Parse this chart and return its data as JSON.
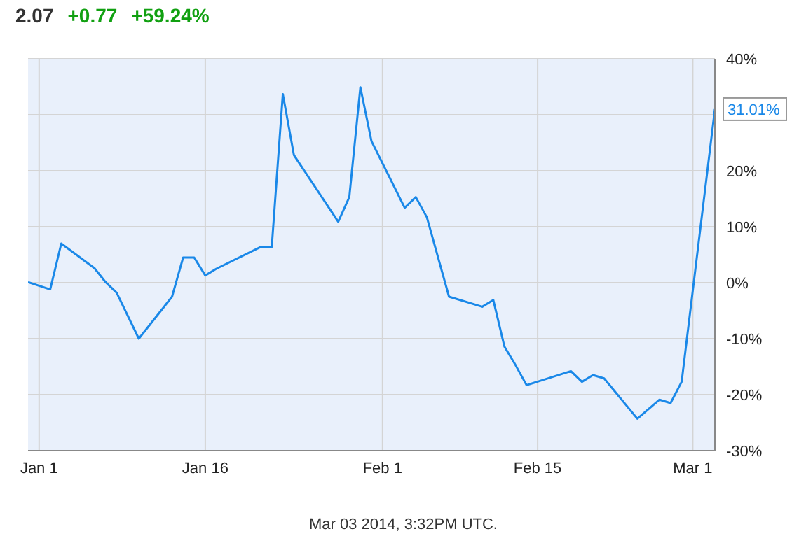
{
  "chart_data": {
    "type": "line",
    "title": "2.07 +0.77 +59.24%",
    "x": [
      "2013-12-31",
      "2014-01-02",
      "2014-01-03",
      "2014-01-06",
      "2014-01-07",
      "2014-01-08",
      "2014-01-10",
      "2014-01-13",
      "2014-01-14",
      "2014-01-15",
      "2014-01-16",
      "2014-01-17",
      "2014-01-21",
      "2014-01-22",
      "2014-01-23",
      "2014-01-24",
      "2014-01-28",
      "2014-01-29",
      "2014-01-30",
      "2014-01-31",
      "2014-02-03",
      "2014-02-04",
      "2014-02-05",
      "2014-02-07",
      "2014-02-10",
      "2014-02-11",
      "2014-02-12",
      "2014-02-13",
      "2014-02-14",
      "2014-02-18",
      "2014-02-19",
      "2014-02-20",
      "2014-02-21",
      "2014-02-24",
      "2014-02-26",
      "2014-02-27",
      "2014-02-28",
      "2014-03-03"
    ],
    "series": [
      {
        "color": "#1a88e8",
        "values": [
          0.1,
          -1.2,
          7.0,
          2.6,
          0.1,
          -1.8,
          -10.0,
          -2.5,
          4.5,
          4.5,
          1.3,
          2.5,
          6.4,
          6.4,
          33.7,
          22.8,
          10.9,
          15.3,
          34.9,
          25.3,
          13.4,
          15.3,
          11.7,
          -2.5,
          -4.3,
          -3.1,
          -11.4,
          -14.7,
          -18.3,
          -15.8,
          -17.7,
          -16.5,
          -17.1,
          -24.3,
          -20.9,
          -21.5,
          -17.7,
          31.01
        ]
      }
    ],
    "xlim": [
      "2013-12-31",
      "2014-03-03"
    ],
    "xticks": [
      {
        "value": "2014-01-01",
        "label": "Jan 1"
      },
      {
        "value": "2014-01-16",
        "label": "Jan 16"
      },
      {
        "value": "2014-02-01",
        "label": "Feb 1"
      },
      {
        "value": "2014-02-15",
        "label": "Feb 15"
      },
      {
        "value": "2014-03-01",
        "label": "Mar 1"
      }
    ],
    "ylim": [
      -30,
      40
    ],
    "yticks": [
      {
        "value": -30,
        "label": "-30%"
      },
      {
        "value": -20,
        "label": "-20%"
      },
      {
        "value": -10,
        "label": "-10%"
      },
      {
        "value": 0,
        "label": "0%"
      },
      {
        "value": 10,
        "label": "10%"
      },
      {
        "value": 20,
        "label": "20%"
      },
      {
        "value": 30,
        "label": null
      },
      {
        "value": 40,
        "label": "40%"
      }
    ],
    "grid": true,
    "legend": false,
    "marker": "none",
    "line_style": "solid",
    "annotations": [
      {
        "text": "31.01%",
        "x": "2014-03-03",
        "y": 31.01
      },
      "Mar 03 2014, 3:32PM UTC."
    ]
  }
}
